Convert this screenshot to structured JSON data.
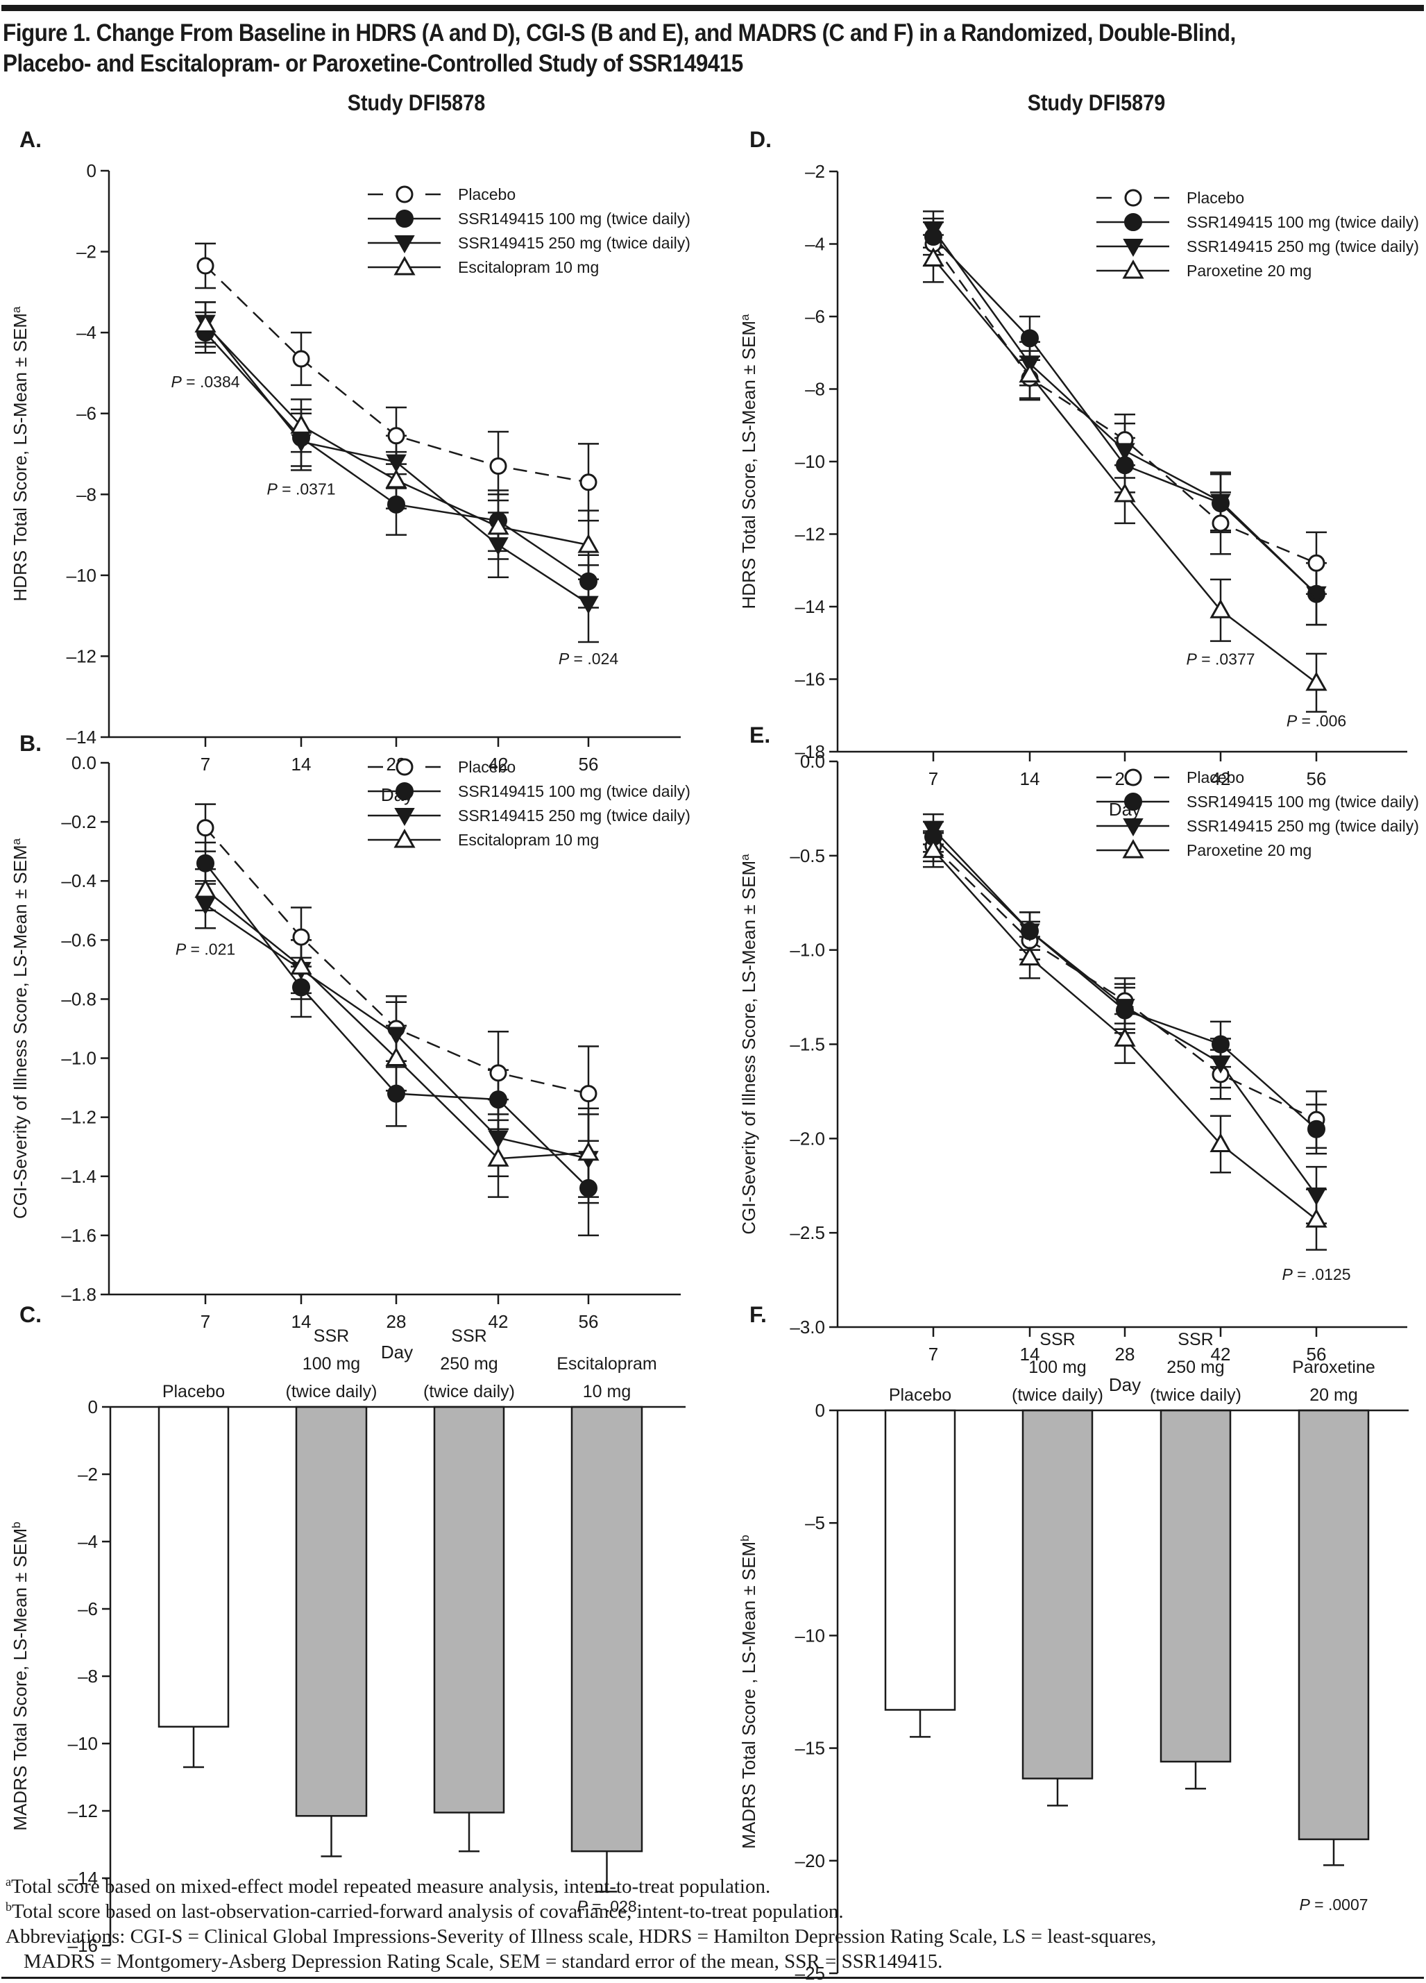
{
  "figure": {
    "title_line1": "Figure 1. Change From Baseline in HDRS (A and D), CGI-S (B and E), and MADRS (C and F) in a Randomized, Double-Blind,",
    "title_line2": "Placebo- and Escitalopram- or Paroxetine-Controlled Study of SSR149415",
    "study_left": "Study DFI5878",
    "study_right": "Study DFI5879",
    "colors": {
      "ink": "#1a1a1a",
      "bar_active": "#b3b3b3",
      "bar_placebo": "#ffffff"
    }
  },
  "footnotes": {
    "a_mark": "a",
    "a_text": "Total score based on mixed-effect model repeated measure analysis, intent-to-treat population.",
    "b_mark": "b",
    "b_text": "Total score based on last-observation-carried-forward analysis of covariance, intent-to-treat population.",
    "abbrev_line1": "Abbreviations: CGI-S = Clinical Global Impressions-Severity of Illness scale, HDRS = Hamilton Depression Rating Scale, LS = least-squares,",
    "abbrev_line2": "MADRS = Montgomery-Asberg Depression Rating Scale, SEM = standard error of the mean, SSR = SSR149415."
  },
  "chart_data": [
    {
      "panel": "A",
      "study": "Study DFI5878",
      "type": "line",
      "title": "",
      "xlabel": "Day",
      "ylabel": "HDRS Total Score, LS-Mean ± SEM",
      "ylabel_sup": "a",
      "x": [
        7,
        14,
        28,
        42,
        56
      ],
      "x_tick_labels": [
        "7",
        "14",
        "28",
        "42",
        "56"
      ],
      "ylim": [
        -14,
        0
      ],
      "y_ticks": [
        0,
        -2,
        -4,
        -6,
        -8,
        -10,
        -12,
        -14
      ],
      "y_tick_labels": [
        "0",
        "–2",
        "–4",
        "–6",
        "–8",
        "–10",
        "–12",
        "–14"
      ],
      "grid": false,
      "legend_position": "top-right",
      "series": [
        {
          "name": "Placebo",
          "marker": "open-circle",
          "dash": true,
          "values": [
            -2.35,
            -4.65,
            -6.55,
            -7.3,
            -7.7
          ],
          "sem": [
            0.55,
            0.65,
            0.7,
            0.85,
            0.95
          ]
        },
        {
          "name": "SSR149415 100 mg (twice daily)",
          "marker": "filled-circle",
          "dash": false,
          "values": [
            -4.0,
            -6.6,
            -8.25,
            -8.65,
            -10.15
          ],
          "sem": [
            0.5,
            0.7,
            0.75,
            0.75,
            0.65
          ]
        },
        {
          "name": "SSR149415 250 mg (twice daily)",
          "marker": "filled-triangle-down",
          "dash": false,
          "values": [
            -3.75,
            -6.7,
            -7.2,
            -9.25,
            -10.7
          ],
          "sem": [
            0.5,
            0.7,
            0.65,
            0.8,
            0.95
          ]
        },
        {
          "name": "Escitalopram 10 mg",
          "marker": "open-triangle-up",
          "dash": false,
          "values": [
            -3.8,
            -6.3,
            -7.65,
            -8.8,
            -9.25
          ],
          "sem": [
            0.55,
            0.65,
            0.7,
            0.8,
            0.85
          ]
        }
      ],
      "annotations": [
        {
          "text_p": "P",
          "text_rest": " = .0384",
          "x": 7,
          "y": -5.35
        },
        {
          "text_p": "P",
          "text_rest": " = .0371",
          "x": 14,
          "y": -8.0
        },
        {
          "text_p": "P",
          "text_rest": " = .024",
          "x": 56,
          "y": -12.2
        }
      ]
    },
    {
      "panel": "B",
      "study": "Study DFI5878",
      "type": "line",
      "title": "",
      "xlabel": "Day",
      "ylabel": "CGI-Severity of Illness Score, LS-Mean ± SEM",
      "ylabel_sup": "a",
      "x": [
        7,
        14,
        28,
        42,
        56
      ],
      "x_tick_labels": [
        "7",
        "14",
        "28",
        "42",
        "56"
      ],
      "ylim": [
        -1.8,
        0
      ],
      "y_ticks": [
        0,
        -0.2,
        -0.4,
        -0.6,
        -0.8,
        -1.0,
        -1.2,
        -1.4,
        -1.6,
        -1.8
      ],
      "y_tick_labels": [
        "0.0",
        "–0.2",
        "–0.4",
        "–0.6",
        "–0.8",
        "–1.0",
        "–1.2",
        "–1.4",
        "–1.6",
        "–1.8"
      ],
      "grid": false,
      "legend_position": "top-right",
      "series": [
        {
          "name": "Placebo",
          "marker": "open-circle",
          "dash": true,
          "values": [
            -0.22,
            -0.59,
            -0.9,
            -1.05,
            -1.12
          ],
          "sem": [
            0.08,
            0.1,
            0.11,
            0.14,
            0.16
          ]
        },
        {
          "name": "SSR149415 100 mg (twice daily)",
          "marker": "filled-circle",
          "dash": false,
          "values": [
            -0.34,
            -0.76,
            -1.12,
            -1.14,
            -1.44
          ],
          "sem": [
            0.07,
            0.1,
            0.11,
            0.1,
            0.16
          ]
        },
        {
          "name": "SSR149415 250 mg (twice daily)",
          "marker": "filled-triangle-down",
          "dash": false,
          "values": [
            -0.48,
            -0.7,
            -0.92,
            -1.27,
            -1.34
          ],
          "sem": [
            0.08,
            0.1,
            0.11,
            0.13,
            0.15
          ]
        },
        {
          "name": "Escitalopram 10 mg",
          "marker": "open-triangle-up",
          "dash": false,
          "values": [
            -0.43,
            -0.69,
            -1.0,
            -1.34,
            -1.32
          ],
          "sem": [
            0.07,
            0.09,
            0.11,
            0.13,
            0.15
          ]
        }
      ],
      "annotations": [
        {
          "text_p": "P",
          "text_rest": " = .021",
          "x": 7,
          "y": -0.65
        }
      ]
    },
    {
      "panel": "C",
      "study": "Study DFI5878",
      "type": "bar",
      "title": "",
      "xlabel": "",
      "ylabel": "MADRS Total Score, LS-Mean ± SEM",
      "ylabel_sup": "b",
      "categories": [
        [
          "Placebo"
        ],
        [
          "SSR",
          "100 mg",
          "(twice daily)"
        ],
        [
          "SSR",
          "250 mg",
          "(twice daily)"
        ],
        [
          "Escitalopram",
          "10 mg"
        ]
      ],
      "category_names": [
        "Placebo",
        "SSR 100 mg (twice daily)",
        "SSR 250 mg (twice daily)",
        "Escitalopram 10 mg"
      ],
      "values": [
        -9.5,
        -12.15,
        -12.05,
        -13.2
      ],
      "sem": [
        1.2,
        1.2,
        1.15,
        1.2
      ],
      "bar_fill": [
        "placebo",
        "active",
        "active",
        "active"
      ],
      "ylim": [
        -16,
        0
      ],
      "y_ticks": [
        0,
        -2,
        -4,
        -6,
        -8,
        -10,
        -12,
        -14,
        -16
      ],
      "y_tick_labels": [
        "0",
        "–2",
        "–4",
        "–6",
        "–8",
        "–10",
        "–12",
        "–14",
        "–16"
      ],
      "grid": false,
      "annotations": [
        {
          "text_p": "P",
          "text_rest": " = .028",
          "category": 3,
          "y": -15.0
        }
      ]
    },
    {
      "panel": "D",
      "study": "Study DFI5879",
      "type": "line",
      "title": "",
      "xlabel": "Day",
      "ylabel": "HDRS Total Score, LS-Mean ± SEM",
      "ylabel_sup": "a",
      "x": [
        7,
        14,
        28,
        42,
        56
      ],
      "x_tick_labels": [
        "7",
        "14",
        "28",
        "42",
        "56"
      ],
      "ylim": [
        -18,
        -2
      ],
      "y_ticks": [
        -2,
        -4,
        -6,
        -8,
        -10,
        -12,
        -14,
        -16,
        -18
      ],
      "y_tick_labels": [
        "–2",
        "–4",
        "–6",
        "–8",
        "–10",
        "–12",
        "–14",
        "–16",
        "–18"
      ],
      "grid": false,
      "legend_position": "top-right",
      "series": [
        {
          "name": "Placebo",
          "marker": "open-circle",
          "dash": true,
          "values": [
            -4.0,
            -7.7,
            -9.4,
            -11.7,
            -12.8
          ],
          "sem": [
            0.6,
            0.6,
            0.7,
            0.85,
            0.85
          ]
        },
        {
          "name": "SSR149415 100 mg (twice daily)",
          "marker": "filled-circle",
          "dash": false,
          "values": [
            -3.8,
            -6.6,
            -10.1,
            -11.15,
            -13.65
          ],
          "sem": [
            0.5,
            0.6,
            0.75,
            0.8,
            0.85
          ]
        },
        {
          "name": "SSR149415 250 mg (twice daily)",
          "marker": "filled-triangle-down",
          "dash": false,
          "values": [
            -3.6,
            -7.3,
            -9.7,
            -11.1,
            -13.65
          ],
          "sem": [
            0.5,
            0.6,
            0.75,
            0.8,
            0.85
          ]
        },
        {
          "name": "Paroxetine 20 mg",
          "marker": "open-triangle-up",
          "dash": false,
          "values": [
            -4.4,
            -7.6,
            -10.9,
            -14.1,
            -16.1
          ],
          "sem": [
            0.65,
            0.65,
            0.8,
            0.85,
            0.8
          ]
        }
      ],
      "annotations": [
        {
          "text_p": "P",
          "text_rest": " = .0377",
          "x": 42,
          "y": -15.6
        },
        {
          "text_p": "P",
          "text_rest": " = .006",
          "x": 56,
          "y": -17.3
        }
      ]
    },
    {
      "panel": "E",
      "study": "Study DFI5879",
      "type": "line",
      "title": "",
      "xlabel": "Day",
      "ylabel": "CGI-Severity of Illness Score, LS-Mean ± SEM",
      "ylabel_sup": "a",
      "x": [
        7,
        14,
        28,
        42,
        56
      ],
      "x_tick_labels": [
        "7",
        "14",
        "28",
        "42",
        "56"
      ],
      "ylim": [
        -3.0,
        0
      ],
      "y_ticks": [
        0,
        -0.5,
        -1.0,
        -1.5,
        -2.0,
        -2.5,
        -3.0
      ],
      "y_tick_labels": [
        "0.0",
        "–0.5",
        "–1.0",
        "–1.5",
        "–2.0",
        "–2.5",
        "–3.0"
      ],
      "grid": false,
      "legend_position": "top-right",
      "series": [
        {
          "name": "Placebo",
          "marker": "open-circle",
          "dash": true,
          "values": [
            -0.45,
            -0.95,
            -1.27,
            -1.66,
            -1.9
          ],
          "sem": [
            0.08,
            0.1,
            0.12,
            0.13,
            0.15
          ]
        },
        {
          "name": "SSR149415 100 mg (twice daily)",
          "marker": "filled-circle",
          "dash": false,
          "values": [
            -0.4,
            -0.9,
            -1.32,
            -1.5,
            -1.95
          ],
          "sem": [
            0.08,
            0.1,
            0.12,
            0.12,
            0.13
          ]
        },
        {
          "name": "SSR149415 250 mg (twice daily)",
          "marker": "filled-triangle-down",
          "dash": false,
          "values": [
            -0.36,
            -0.9,
            -1.3,
            -1.6,
            -2.3
          ],
          "sem": [
            0.08,
            0.1,
            0.12,
            0.13,
            0.15
          ]
        },
        {
          "name": "Paroxetine 20 mg",
          "marker": "open-triangle-up",
          "dash": false,
          "values": [
            -0.47,
            -1.04,
            -1.47,
            -2.03,
            -2.43
          ],
          "sem": [
            0.09,
            0.11,
            0.13,
            0.15,
            0.16
          ]
        }
      ],
      "annotations": [
        {
          "text_p": "P",
          "text_rest": " = .0125",
          "x": 56,
          "y": -2.75
        }
      ]
    },
    {
      "panel": "F",
      "study": "Study DFI5879",
      "type": "bar",
      "title": "",
      "xlabel": "",
      "ylabel": "MADRS Total Score , LS-Mean ± SEM",
      "ylabel_sup": "b",
      "categories": [
        [
          "Placebo"
        ],
        [
          "SSR",
          "100 mg",
          "(twice daily)"
        ],
        [
          "SSR",
          "250 mg",
          "(twice daily)"
        ],
        [
          "Paroxetine",
          "20 mg"
        ]
      ],
      "category_names": [
        "Placebo",
        "SSR 100 mg (twice daily)",
        "SSR 250 mg (twice daily)",
        "Paroxetine 20 mg"
      ],
      "values": [
        -13.3,
        -16.35,
        -15.6,
        -19.05
      ],
      "sem": [
        1.2,
        1.2,
        1.2,
        1.15
      ],
      "bar_fill": [
        "placebo",
        "active",
        "active",
        "active"
      ],
      "ylim": [
        -25,
        0
      ],
      "y_ticks": [
        0,
        -5,
        -10,
        -15,
        -20,
        -25
      ],
      "y_tick_labels": [
        "0",
        "–5",
        "–10",
        "–15",
        "–20",
        "–25"
      ],
      "grid": false,
      "annotations": [
        {
          "text_p": "P",
          "text_rest": " = .0007",
          "category": 3,
          "y": -22.2
        }
      ]
    }
  ]
}
